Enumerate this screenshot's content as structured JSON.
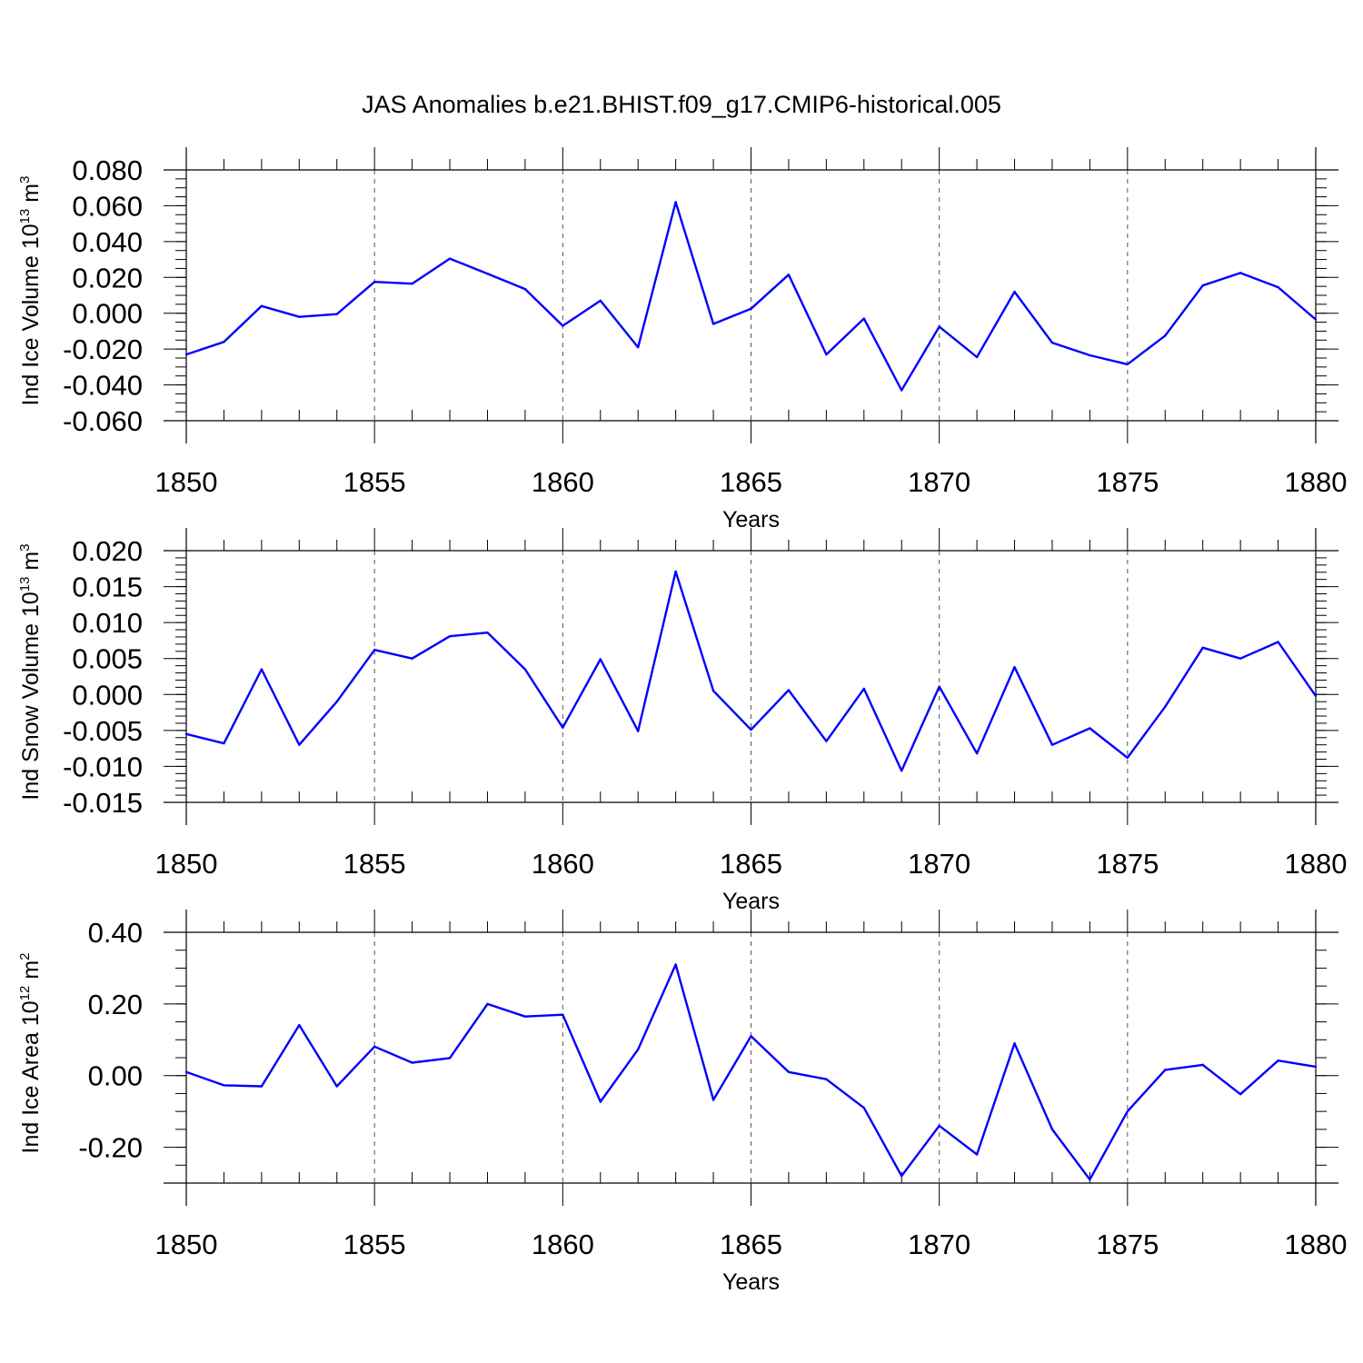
{
  "figure": {
    "title": "JAS Anomalies b.e21.BHIST.f09_g17.CMIP6-historical.005",
    "line_color": "#0000ff",
    "grid_color": "#555555"
  },
  "chart_data": [
    {
      "type": "line",
      "name": "ice-volume",
      "ylabel": {
        "main": "Ind Ice Volume 10",
        "sup1": "13",
        "unit": " m",
        "sup2": "3"
      },
      "xlabel": "Years",
      "xlim": [
        1850,
        1880
      ],
      "ylim": [
        -0.06,
        0.08
      ],
      "xticks": [
        1850,
        1855,
        1860,
        1865,
        1870,
        1875,
        1880
      ],
      "xtick_labels": [
        "1850",
        "1855",
        "1860",
        "1865",
        "1870",
        "1875",
        "1880"
      ],
      "yticks": [
        -0.06,
        -0.04,
        -0.02,
        0.0,
        0.02,
        0.04,
        0.06,
        0.08
      ],
      "ytick_labels": [
        "-0.060",
        "-0.040",
        "-0.020",
        "0.000",
        "0.020",
        "0.040",
        "0.060",
        "0.080"
      ],
      "yminor_step": 0.005,
      "x": [
        1850,
        1851,
        1852,
        1853,
        1854,
        1855,
        1856,
        1857,
        1858,
        1859,
        1860,
        1861,
        1862,
        1863,
        1864,
        1865,
        1866,
        1867,
        1868,
        1869,
        1870,
        1871,
        1872,
        1873,
        1874,
        1875,
        1876,
        1877,
        1878,
        1879,
        1880
      ],
      "values": [
        -0.023,
        -0.016,
        0.004,
        -0.002,
        -0.0005,
        0.0175,
        0.0165,
        0.0305,
        0.022,
        0.0135,
        -0.007,
        0.007,
        -0.019,
        0.062,
        -0.006,
        0.0025,
        0.0215,
        -0.023,
        -0.003,
        -0.043,
        -0.0075,
        -0.0245,
        0.012,
        -0.0165,
        -0.0235,
        -0.0285,
        -0.0125,
        0.0155,
        0.0225,
        0.0145,
        -0.0035
      ]
    },
    {
      "type": "line",
      "name": "snow-volume",
      "ylabel": {
        "main": "Ind Snow Volume 10",
        "sup1": "13",
        "unit": " m",
        "sup2": "3"
      },
      "xlabel": "Years",
      "xlim": [
        1850,
        1880
      ],
      "ylim": [
        -0.015,
        0.02
      ],
      "xticks": [
        1850,
        1855,
        1860,
        1865,
        1870,
        1875,
        1880
      ],
      "xtick_labels": [
        "1850",
        "1855",
        "1860",
        "1865",
        "1870",
        "1875",
        "1880"
      ],
      "yticks": [
        -0.015,
        -0.01,
        -0.005,
        0.0,
        0.005,
        0.01,
        0.015,
        0.02
      ],
      "ytick_labels": [
        "-0.015",
        "-0.010",
        "-0.005",
        "0.000",
        "0.005",
        "0.010",
        "0.015",
        "0.020"
      ],
      "yminor_step": 0.001,
      "x": [
        1850,
        1851,
        1852,
        1853,
        1854,
        1855,
        1856,
        1857,
        1858,
        1859,
        1860,
        1861,
        1862,
        1863,
        1864,
        1865,
        1866,
        1867,
        1868,
        1869,
        1870,
        1871,
        1872,
        1873,
        1874,
        1875,
        1876,
        1877,
        1878,
        1879,
        1880
      ],
      "values": [
        -0.0055,
        -0.0068,
        0.0035,
        -0.007,
        -0.001,
        0.0062,
        0.005,
        0.0081,
        0.0086,
        0.0035,
        -0.0046,
        0.0049,
        -0.0051,
        0.0171,
        0.0005,
        -0.0049,
        0.0006,
        -0.0065,
        0.0008,
        -0.0106,
        0.0011,
        -0.0082,
        0.0038,
        -0.007,
        -0.0047,
        -0.0088,
        -0.0017,
        0.0065,
        0.005,
        0.0073,
        -0.0002
      ]
    },
    {
      "type": "line",
      "name": "ice-area",
      "ylabel": {
        "main": "Ind Ice Area 10",
        "sup1": "12",
        "unit": " m",
        "sup2": "2"
      },
      "xlabel": "Years",
      "xlim": [
        1850,
        1880
      ],
      "ylim": [
        -0.3,
        0.4
      ],
      "xticks": [
        1850,
        1855,
        1860,
        1865,
        1870,
        1875,
        1880
      ],
      "xtick_labels": [
        "1850",
        "1855",
        "1860",
        "1865",
        "1870",
        "1875",
        "1880"
      ],
      "yticks": [
        -0.2,
        0.0,
        0.2,
        0.4
      ],
      "ytick_labels": [
        "-0.20",
        "0.00",
        "0.20",
        "0.40"
      ],
      "ymajor_ticks_extra": [
        -0.3
      ],
      "yminor_step": 0.05,
      "x": [
        1850,
        1851,
        1852,
        1853,
        1854,
        1855,
        1856,
        1857,
        1858,
        1859,
        1860,
        1861,
        1862,
        1863,
        1864,
        1865,
        1866,
        1867,
        1868,
        1869,
        1870,
        1871,
        1872,
        1873,
        1874,
        1875,
        1876,
        1877,
        1878,
        1879,
        1880
      ],
      "values": [
        0.01,
        -0.027,
        -0.03,
        0.141,
        -0.03,
        0.081,
        0.036,
        0.049,
        0.2,
        0.165,
        0.17,
        -0.073,
        0.073,
        0.31,
        -0.068,
        0.11,
        0.01,
        -0.01,
        -0.09,
        -0.28,
        -0.14,
        -0.22,
        0.09,
        -0.15,
        -0.29,
        -0.1,
        0.016,
        0.03,
        -0.052,
        0.042,
        0.025
      ]
    }
  ]
}
